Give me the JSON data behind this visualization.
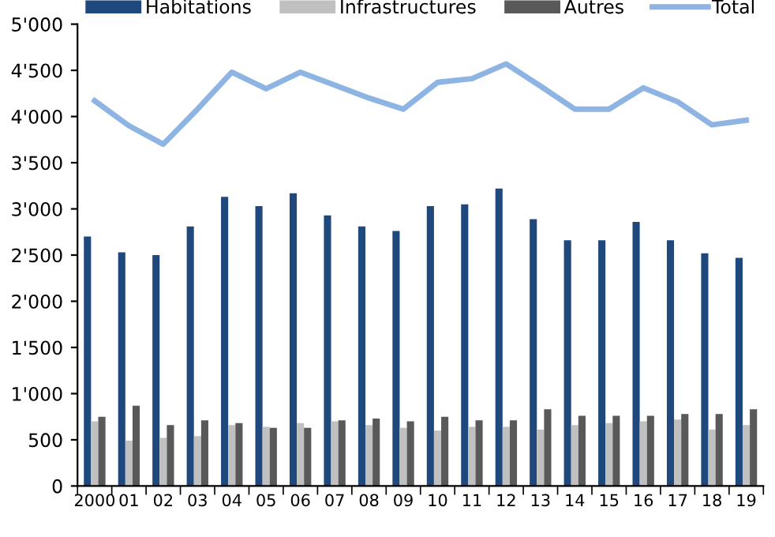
{
  "chart_data": {
    "type": "bar",
    "categories": [
      "2000",
      "01",
      "02",
      "03",
      "04",
      "05",
      "06",
      "07",
      "08",
      "09",
      "10",
      "11",
      "12",
      "13",
      "14",
      "15",
      "16",
      "17",
      "18",
      "19"
    ],
    "series": [
      {
        "name": "Habitations",
        "color": "#1f497d",
        "values": [
          2700,
          2530,
          2500,
          2810,
          3130,
          3030,
          3170,
          2930,
          2810,
          2760,
          3030,
          3050,
          3220,
          2890,
          2660,
          2660,
          2860,
          2660,
          2520,
          2470
        ]
      },
      {
        "name": "Infrastructures",
        "color": "#c0c0c0",
        "values": [
          700,
          490,
          520,
          540,
          660,
          640,
          680,
          700,
          660,
          630,
          600,
          640,
          640,
          610,
          660,
          680,
          700,
          720,
          610,
          660
        ]
      },
      {
        "name": "Autres",
        "color": "#595959",
        "values": [
          750,
          870,
          660,
          710,
          680,
          630,
          630,
          710,
          730,
          700,
          750,
          710,
          710,
          830,
          760,
          760,
          760,
          780,
          780,
          830
        ]
      },
      {
        "name": "Total",
        "color": "#8db4e2",
        "type": "line",
        "values": [
          4170,
          3900,
          3700,
          4080,
          4480,
          4300,
          4480,
          4340,
          4200,
          4080,
          4370,
          4410,
          4570,
          4330,
          4080,
          4080,
          4310,
          4160,
          3910,
          3960
        ]
      }
    ],
    "ylim": [
      0,
      5000
    ],
    "yticks": [
      {
        "value": 0,
        "label": "0"
      },
      {
        "value": 500,
        "label": "500"
      },
      {
        "value": 1000,
        "label": "1'000"
      },
      {
        "value": 1500,
        "label": "1'500"
      },
      {
        "value": 2000,
        "label": "2'000"
      },
      {
        "value": 2500,
        "label": "2'500"
      },
      {
        "value": 3000,
        "label": "3'000"
      },
      {
        "value": 3500,
        "label": "3'500"
      },
      {
        "value": 4000,
        "label": "4'000"
      },
      {
        "value": 4500,
        "label": "4'500"
      },
      {
        "value": 5000,
        "label": "5'000"
      }
    ],
    "grid": false,
    "legend": "top",
    "marker": "none",
    "line_style": "solid"
  }
}
